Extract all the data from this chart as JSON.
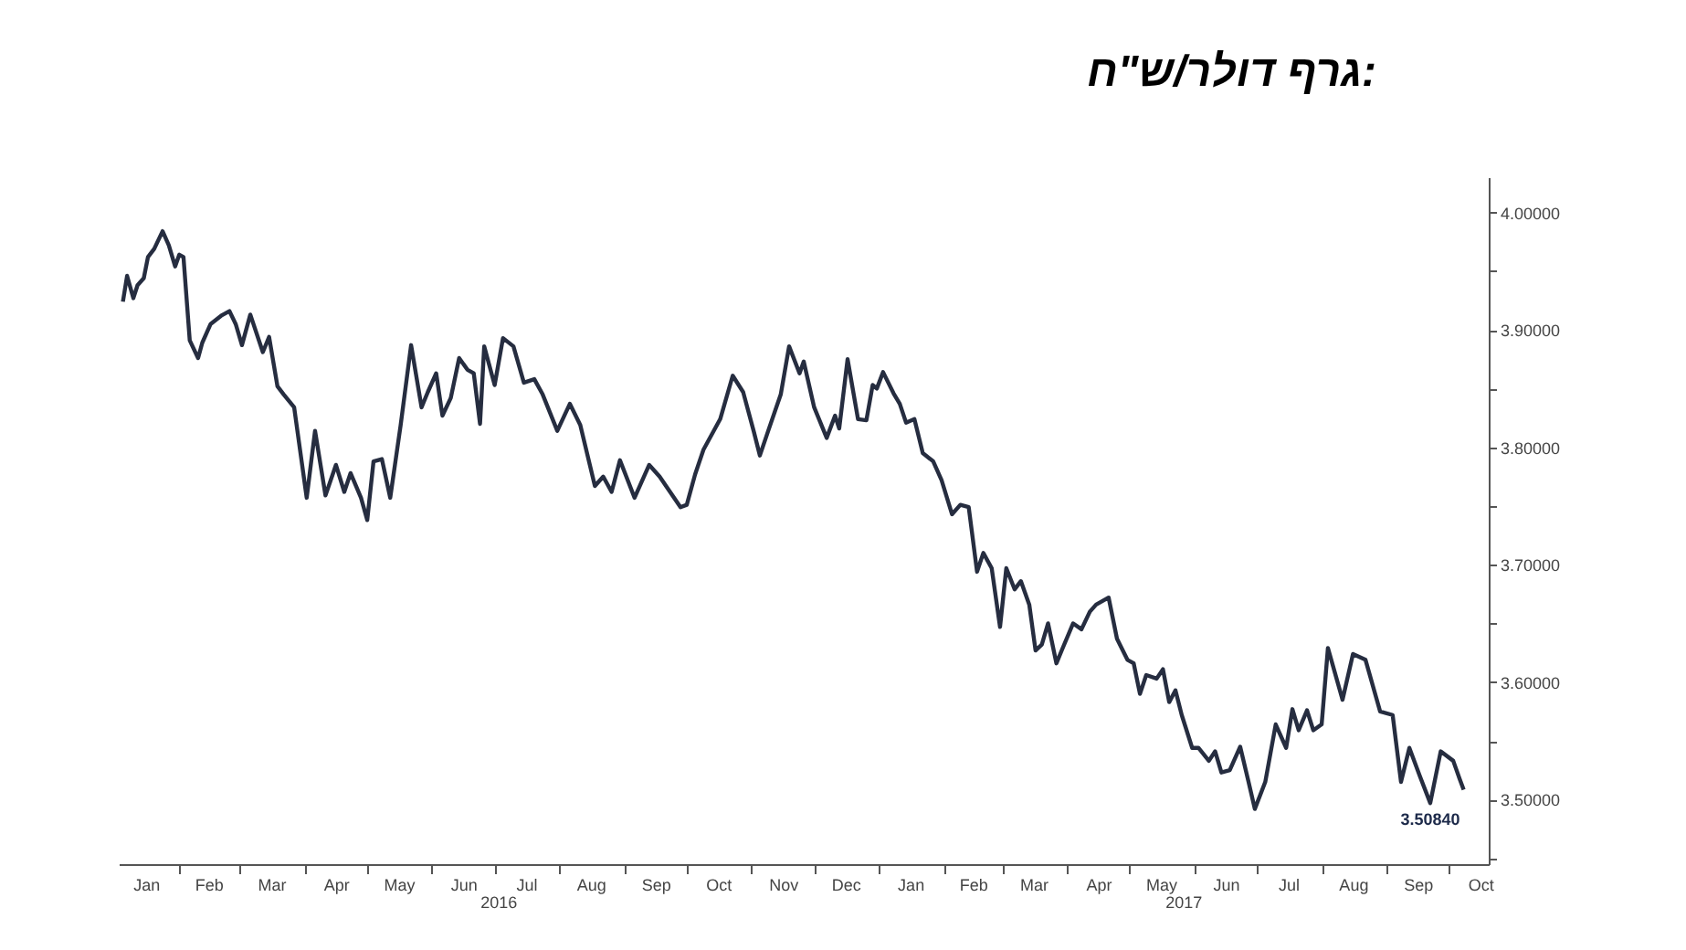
{
  "chart_data": {
    "type": "line",
    "title": "גרף דולר/ש\"ח:",
    "x": [
      "2016-01-05",
      "2016-01-07",
      "2016-01-10",
      "2016-01-12",
      "2016-01-15",
      "2016-01-17",
      "2016-01-20",
      "2016-01-24",
      "2016-01-27",
      "2016-01-30",
      "2016-02-01",
      "2016-02-03",
      "2016-02-06",
      "2016-02-10",
      "2016-02-12",
      "2016-02-16",
      "2016-02-21",
      "2016-02-25",
      "2016-02-28",
      "2016-03-02",
      "2016-03-06",
      "2016-03-12",
      "2016-03-15",
      "2016-03-19",
      "2016-03-22",
      "2016-03-27",
      "2016-04-02",
      "2016-04-06",
      "2016-04-11",
      "2016-04-16",
      "2016-04-20",
      "2016-04-23",
      "2016-04-28",
      "2016-05-01",
      "2016-05-04",
      "2016-05-08",
      "2016-05-12",
      "2016-05-17",
      "2016-05-22",
      "2016-05-27",
      "2016-05-30",
      "2016-06-03",
      "2016-06-06",
      "2016-06-10",
      "2016-06-14",
      "2016-06-18",
      "2016-06-21",
      "2016-06-24",
      "2016-06-26",
      "2016-07-01",
      "2016-07-05",
      "2016-07-10",
      "2016-07-15",
      "2016-07-20",
      "2016-07-24",
      "2016-07-31",
      "2016-08-06",
      "2016-08-11",
      "2016-08-18",
      "2016-08-22",
      "2016-08-26",
      "2016-08-30",
      "2016-09-06",
      "2016-09-13",
      "2016-09-18",
      "2016-09-23",
      "2016-09-28",
      "2016-10-01",
      "2016-10-05",
      "2016-10-09",
      "2016-10-17",
      "2016-10-23",
      "2016-10-28",
      "2016-11-02",
      "2016-11-05",
      "2016-11-09",
      "2016-11-15",
      "2016-11-19",
      "2016-11-24",
      "2016-11-26",
      "2016-12-01",
      "2016-12-07",
      "2016-12-11",
      "2016-12-13",
      "2016-12-17",
      "2016-12-22",
      "2016-12-26",
      "2016-12-29",
      "2016-12-31",
      "2017-01-03",
      "2017-01-08",
      "2017-01-11",
      "2017-01-14",
      "2017-01-18",
      "2017-01-22",
      "2017-01-27",
      "2017-01-31",
      "2017-02-05",
      "2017-02-09",
      "2017-02-13",
      "2017-02-17",
      "2017-02-20",
      "2017-02-24",
      "2017-02-28",
      "2017-03-03",
      "2017-03-07",
      "2017-03-10",
      "2017-03-14",
      "2017-03-17",
      "2017-03-20",
      "2017-03-23",
      "2017-03-27",
      "2017-03-30",
      "2017-04-04",
      "2017-04-08",
      "2017-04-12",
      "2017-04-15",
      "2017-04-21",
      "2017-04-25",
      "2017-04-30",
      "2017-05-03",
      "2017-05-06",
      "2017-05-09",
      "2017-05-14",
      "2017-05-17",
      "2017-05-20",
      "2017-05-23",
      "2017-05-26",
      "2017-05-31",
      "2017-06-03",
      "2017-06-08",
      "2017-06-11",
      "2017-06-14",
      "2017-06-18",
      "2017-06-23",
      "2017-06-27",
      "2017-06-30",
      "2017-07-05",
      "2017-07-10",
      "2017-07-15",
      "2017-07-18",
      "2017-07-21",
      "2017-07-25",
      "2017-07-28",
      "2017-08-01",
      "2017-08-04",
      "2017-08-11",
      "2017-08-16",
      "2017-08-22",
      "2017-08-29",
      "2017-09-04",
      "2017-09-08",
      "2017-09-12",
      "2017-09-17",
      "2017-09-22",
      "2017-09-27",
      "2017-10-03",
      "2017-10-06",
      "2017-10-08"
    ],
    "series": [
      {
        "color": "#262d40",
        "values": [
          3.924,
          3.946,
          3.927,
          3.938,
          3.944,
          3.962,
          3.969,
          3.984,
          3.972,
          3.954,
          3.964,
          3.962,
          3.891,
          3.876,
          3.889,
          3.905,
          3.912,
          3.916,
          3.905,
          3.887,
          3.913,
          3.881,
          3.894,
          3.852,
          3.845,
          3.834,
          3.757,
          3.814,
          3.759,
          3.785,
          3.762,
          3.778,
          3.757,
          3.738,
          3.788,
          3.79,
          3.757,
          3.819,
          3.887,
          3.834,
          3.847,
          3.863,
          3.827,
          3.842,
          3.876,
          3.866,
          3.863,
          3.82,
          3.886,
          3.853,
          3.893,
          3.886,
          3.855,
          3.858,
          3.845,
          3.814,
          3.837,
          3.819,
          3.767,
          3.775,
          3.762,
          3.789,
          3.757,
          3.785,
          3.775,
          3.762,
          3.749,
          3.751,
          3.777,
          3.798,
          3.824,
          3.861,
          3.847,
          3.814,
          3.793,
          3.814,
          3.845,
          3.886,
          3.863,
          3.873,
          3.834,
          3.808,
          3.827,
          3.816,
          3.875,
          3.824,
          3.823,
          3.853,
          3.85,
          3.864,
          3.846,
          3.837,
          3.821,
          3.824,
          3.795,
          3.788,
          3.772,
          3.743,
          3.751,
          3.749,
          3.694,
          3.71,
          3.697,
          3.647,
          3.697,
          3.679,
          3.686,
          3.666,
          3.627,
          3.632,
          3.65,
          3.616,
          3.629,
          3.65,
          3.645,
          3.66,
          3.666,
          3.672,
          3.637,
          3.619,
          3.616,
          3.59,
          3.606,
          3.603,
          3.611,
          3.583,
          3.593,
          3.572,
          3.544,
          3.544,
          3.533,
          3.541,
          3.523,
          3.525,
          3.545,
          3.515,
          3.492,
          3.515,
          3.564,
          3.544,
          3.577,
          3.559,
          3.576,
          3.559,
          3.564,
          3.629,
          3.585,
          3.624,
          3.619,
          3.575,
          3.572,
          3.515,
          3.544,
          3.52,
          3.497,
          3.541,
          3.533,
          3.518,
          3.5084
        ]
      }
    ],
    "xlim": [
      "2016-01-03",
      "2017-10-20"
    ],
    "xticks": [
      {
        "value": "2016-01-16",
        "label": "Jan"
      },
      {
        "value": "2016-02-01",
        "label": null
      },
      {
        "value": "2016-02-15",
        "label": "Feb"
      },
      {
        "value": "2016-03-01",
        "label": null
      },
      {
        "value": "2016-03-16",
        "label": "Mar"
      },
      {
        "value": "2016-04-01",
        "label": null
      },
      {
        "value": "2016-04-16",
        "label": "Apr"
      },
      {
        "value": "2016-05-01",
        "label": null
      },
      {
        "value": "2016-05-16",
        "label": "May"
      },
      {
        "value": "2016-06-01",
        "label": null
      },
      {
        "value": "2016-06-16",
        "label": "Jun"
      },
      {
        "value": "2016-07-01",
        "label": null
      },
      {
        "value": "2016-07-16",
        "label": "Jul"
      },
      {
        "value": "2016-08-01",
        "label": null
      },
      {
        "value": "2016-08-16",
        "label": "Aug"
      },
      {
        "value": "2016-09-01",
        "label": null
      },
      {
        "value": "2016-09-16",
        "label": "Sep"
      },
      {
        "value": "2016-10-01",
        "label": null
      },
      {
        "value": "2016-10-16",
        "label": "Oct"
      },
      {
        "value": "2016-11-01",
        "label": null
      },
      {
        "value": "2016-11-16",
        "label": "Nov"
      },
      {
        "value": "2016-12-01",
        "label": null
      },
      {
        "value": "2016-12-16",
        "label": "Dec"
      },
      {
        "value": "2017-01-01",
        "label": null
      },
      {
        "value": "2017-01-16",
        "label": "Jan"
      },
      {
        "value": "2017-02-01",
        "label": null
      },
      {
        "value": "2017-02-15",
        "label": "Feb"
      },
      {
        "value": "2017-03-01",
        "label": null
      },
      {
        "value": "2017-03-16",
        "label": "Mar"
      },
      {
        "value": "2017-04-01",
        "label": null
      },
      {
        "value": "2017-04-16",
        "label": "Apr"
      },
      {
        "value": "2017-05-01",
        "label": null
      },
      {
        "value": "2017-05-16",
        "label": "May"
      },
      {
        "value": "2017-06-01",
        "label": null
      },
      {
        "value": "2017-06-16",
        "label": "Jun"
      },
      {
        "value": "2017-07-01",
        "label": null
      },
      {
        "value": "2017-07-16",
        "label": "Jul"
      },
      {
        "value": "2017-08-01",
        "label": null
      },
      {
        "value": "2017-08-16",
        "label": "Aug"
      },
      {
        "value": "2017-09-01",
        "label": null
      },
      {
        "value": "2017-09-16",
        "label": "Sep"
      },
      {
        "value": "2017-10-01",
        "label": null
      },
      {
        "value": "2017-10-16",
        "label": "Oct"
      }
    ],
    "ylim": [
      3.445,
      4.03
    ],
    "yticks": [
      {
        "value": 3.45,
        "label": null
      },
      {
        "value": 3.5,
        "label": "3.50000"
      },
      {
        "value": 3.55,
        "label": null
      },
      {
        "value": 3.6,
        "label": "3.60000"
      },
      {
        "value": 3.65,
        "label": null
      },
      {
        "value": 3.7,
        "label": "3.70000"
      },
      {
        "value": 3.75,
        "label": null
      },
      {
        "value": 3.8,
        "label": "3.80000"
      },
      {
        "value": 3.85,
        "label": null
      },
      {
        "value": 3.9,
        "label": "3.90000"
      },
      {
        "value": 3.95,
        "label": null
      },
      {
        "value": 4.0,
        "label": "4.00000"
      }
    ],
    "annotations": [
      {
        "text": "3.50840",
        "x": "2017-10-08",
        "y": 3.5084
      },
      "2016",
      "2017"
    ],
    "grid": false,
    "legend": false
  }
}
